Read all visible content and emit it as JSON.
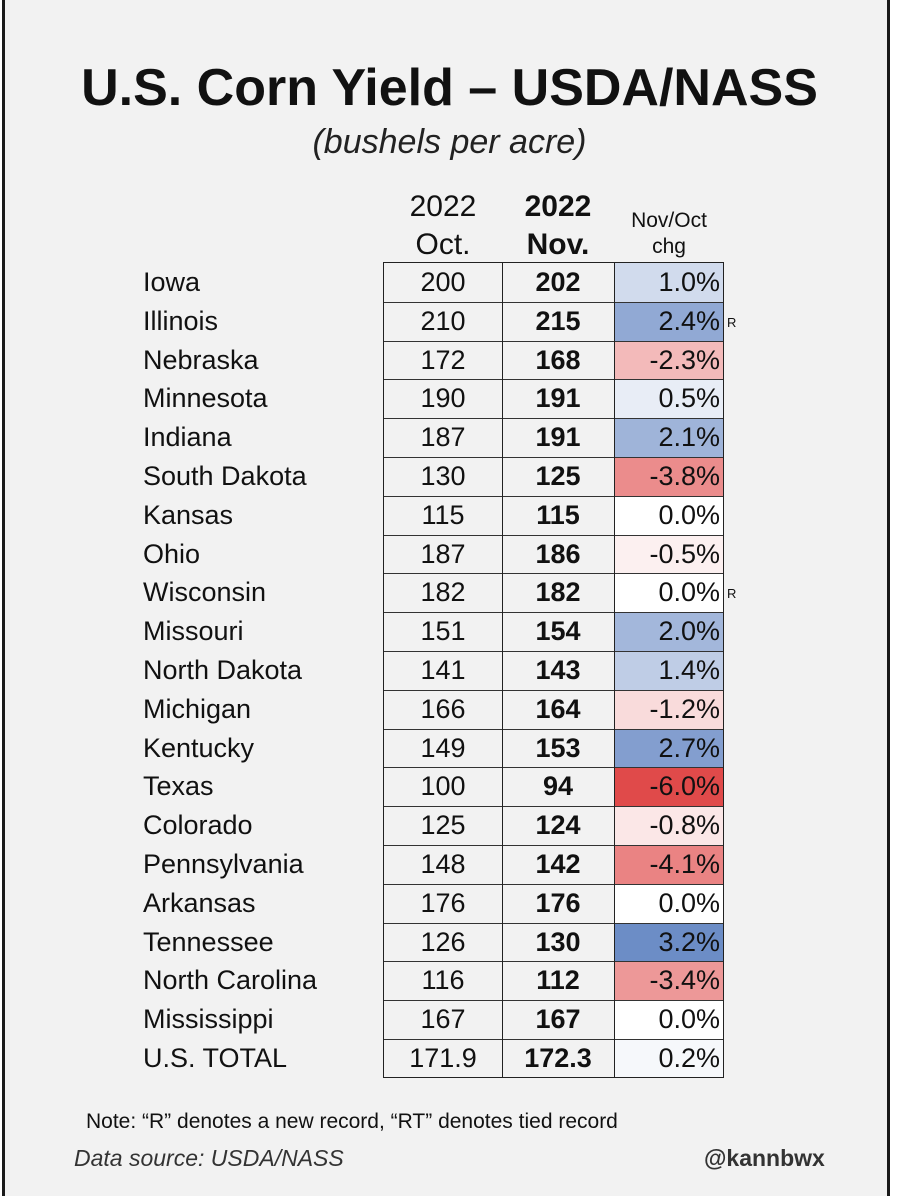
{
  "title": "U.S. Corn Yield – USDA/NASS",
  "subtitle": "(bushels per acre)",
  "columns": {
    "oct_year": "2022",
    "oct_label": "Oct.",
    "nov_year": "2022",
    "nov_label": "Nov.",
    "chg_line1": "Nov/Oct",
    "chg_line2": "chg"
  },
  "colors": {
    "positive": "#5b7fbf",
    "negative": "#e04a4a",
    "neutral": "#ffffff"
  },
  "chart_data": {
    "type": "table",
    "title": "U.S. Corn Yield – USDA/NASS",
    "subtitle": "(bushels per acre)",
    "columns": [
      "2022 Oct.",
      "2022 Nov.",
      "Nov/Oct chg"
    ],
    "rows": [
      {
        "state": "Iowa",
        "oct": "200",
        "nov": "202",
        "chg": "1.0%",
        "chg_value": 1.0,
        "record": ""
      },
      {
        "state": "Illinois",
        "oct": "210",
        "nov": "215",
        "chg": "2.4%",
        "chg_value": 2.4,
        "record": "R"
      },
      {
        "state": "Nebraska",
        "oct": "172",
        "nov": "168",
        "chg": "-2.3%",
        "chg_value": -2.3,
        "record": ""
      },
      {
        "state": "Minnesota",
        "oct": "190",
        "nov": "191",
        "chg": "0.5%",
        "chg_value": 0.5,
        "record": ""
      },
      {
        "state": "Indiana",
        "oct": "187",
        "nov": "191",
        "chg": "2.1%",
        "chg_value": 2.1,
        "record": ""
      },
      {
        "state": "South Dakota",
        "oct": "130",
        "nov": "125",
        "chg": "-3.8%",
        "chg_value": -3.8,
        "record": ""
      },
      {
        "state": "Kansas",
        "oct": "115",
        "nov": "115",
        "chg": "0.0%",
        "chg_value": 0.0,
        "record": ""
      },
      {
        "state": "Ohio",
        "oct": "187",
        "nov": "186",
        "chg": "-0.5%",
        "chg_value": -0.5,
        "record": ""
      },
      {
        "state": "Wisconsin",
        "oct": "182",
        "nov": "182",
        "chg": "0.0%",
        "chg_value": 0.0,
        "record": "R"
      },
      {
        "state": "Missouri",
        "oct": "151",
        "nov": "154",
        "chg": "2.0%",
        "chg_value": 2.0,
        "record": ""
      },
      {
        "state": "North Dakota",
        "oct": "141",
        "nov": "143",
        "chg": "1.4%",
        "chg_value": 1.4,
        "record": ""
      },
      {
        "state": "Michigan",
        "oct": "166",
        "nov": "164",
        "chg": "-1.2%",
        "chg_value": -1.2,
        "record": ""
      },
      {
        "state": "Kentucky",
        "oct": "149",
        "nov": "153",
        "chg": "2.7%",
        "chg_value": 2.7,
        "record": ""
      },
      {
        "state": "Texas",
        "oct": "100",
        "nov": "94",
        "chg": "-6.0%",
        "chg_value": -6.0,
        "record": ""
      },
      {
        "state": "Colorado",
        "oct": "125",
        "nov": "124",
        "chg": "-0.8%",
        "chg_value": -0.8,
        "record": ""
      },
      {
        "state": "Pennsylvania",
        "oct": "148",
        "nov": "142",
        "chg": "-4.1%",
        "chg_value": -4.1,
        "record": ""
      },
      {
        "state": "Arkansas",
        "oct": "176",
        "nov": "176",
        "chg": "0.0%",
        "chg_value": 0.0,
        "record": ""
      },
      {
        "state": "Tennessee",
        "oct": "126",
        "nov": "130",
        "chg": "3.2%",
        "chg_value": 3.2,
        "record": ""
      },
      {
        "state": "North Carolina",
        "oct": "116",
        "nov": "112",
        "chg": "-3.4%",
        "chg_value": -3.4,
        "record": ""
      },
      {
        "state": "Mississippi",
        "oct": "167",
        "nov": "167",
        "chg": "0.0%",
        "chg_value": 0.0,
        "record": ""
      },
      {
        "state": "U.S. TOTAL",
        "oct": "171.9",
        "nov": "172.3",
        "chg": "0.2%",
        "chg_value": 0.2,
        "record": ""
      }
    ]
  },
  "note": "Note: “R” denotes a new record, “RT” denotes tied record",
  "source": "Data source: USDA/NASS",
  "handle": "@kannbwx"
}
